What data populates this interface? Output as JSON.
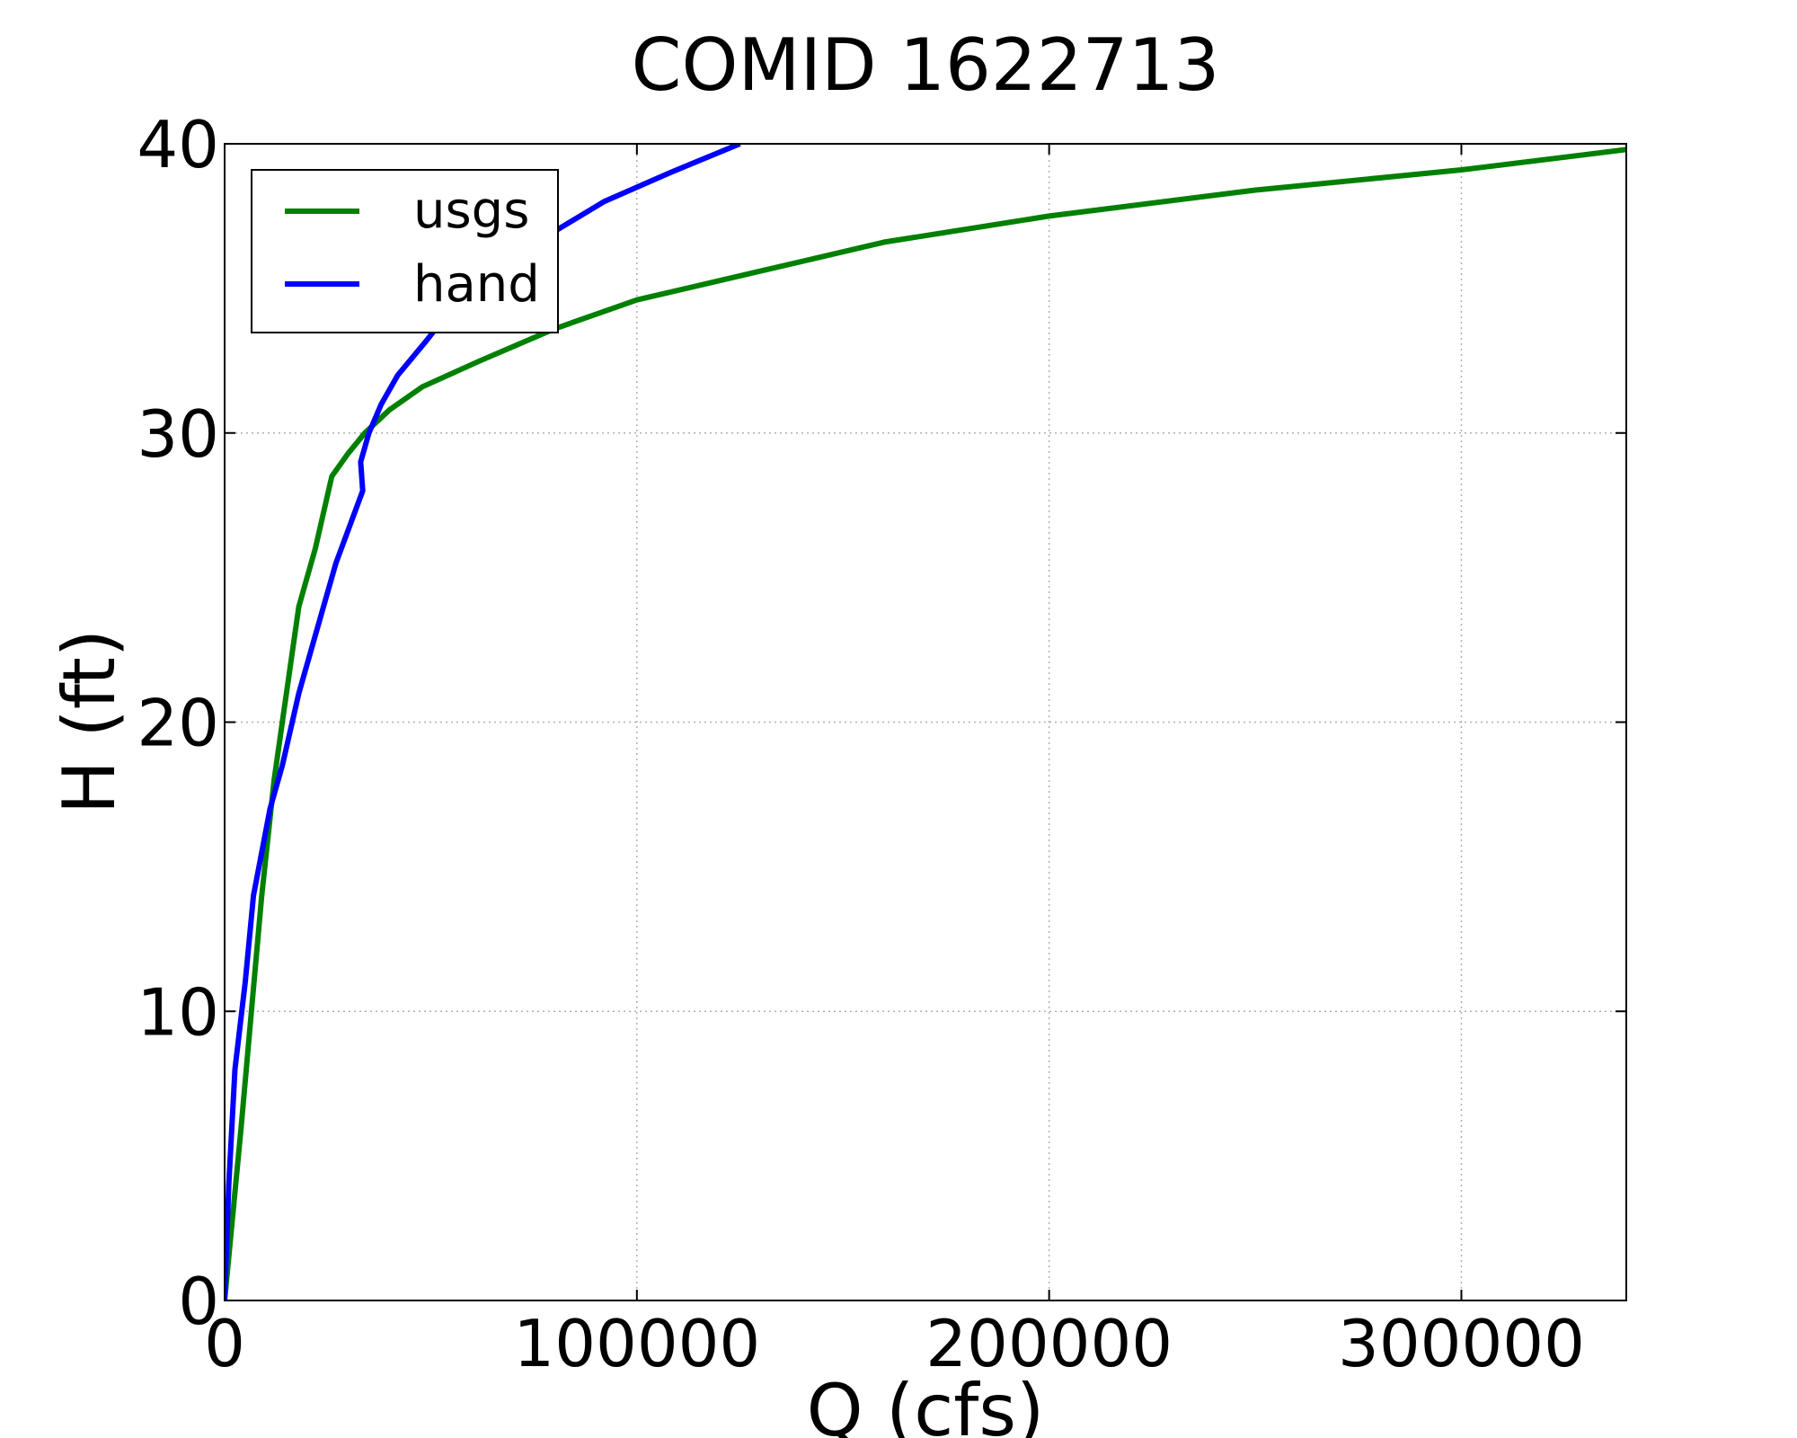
{
  "chart_data": {
    "type": "line",
    "title": "COMID 1622713",
    "xlabel": "Q (cfs)",
    "ylabel": "H (ft)",
    "xlim": [
      0,
      340000
    ],
    "ylim": [
      0,
      40
    ],
    "xticks": [
      0,
      100000,
      200000,
      300000
    ],
    "yticks": [
      0,
      10,
      20,
      30,
      40
    ],
    "grid": true,
    "legend_position": "top-left",
    "series": [
      {
        "name": "usgs",
        "color": "#008000",
        "points": [
          [
            0,
            0
          ],
          [
            2000,
            3
          ],
          [
            4000,
            6
          ],
          [
            6500,
            10
          ],
          [
            9000,
            14
          ],
          [
            12000,
            18
          ],
          [
            14000,
            20
          ],
          [
            16000,
            22
          ],
          [
            18000,
            24
          ],
          [
            22000,
            26
          ],
          [
            26000,
            28.5
          ],
          [
            30000,
            29.3
          ],
          [
            34000,
            30
          ],
          [
            40000,
            30.8
          ],
          [
            48000,
            31.6
          ],
          [
            62000,
            32.5
          ],
          [
            80000,
            33.6
          ],
          [
            100000,
            34.6
          ],
          [
            130000,
            35.6
          ],
          [
            160000,
            36.6
          ],
          [
            200000,
            37.5
          ],
          [
            250000,
            38.4
          ],
          [
            300000,
            39.1
          ],
          [
            340000,
            39.8
          ]
        ]
      },
      {
        "name": "hand",
        "color": "#0000ff",
        "points": [
          [
            0,
            0
          ],
          [
            1000,
            4
          ],
          [
            2500,
            8
          ],
          [
            5000,
            11
          ],
          [
            7000,
            14
          ],
          [
            9000,
            15.5
          ],
          [
            11000,
            17
          ],
          [
            14000,
            18.5
          ],
          [
            18000,
            21
          ],
          [
            23000,
            23.5
          ],
          [
            27000,
            25.5
          ],
          [
            33500,
            28
          ],
          [
            33000,
            29
          ],
          [
            35000,
            30
          ],
          [
            38000,
            31
          ],
          [
            42000,
            32
          ],
          [
            49000,
            33.2
          ],
          [
            55000,
            34.3
          ],
          [
            65000,
            35.6
          ],
          [
            78000,
            36.8
          ],
          [
            92000,
            38
          ],
          [
            108000,
            39
          ],
          [
            125000,
            40
          ]
        ]
      }
    ]
  }
}
